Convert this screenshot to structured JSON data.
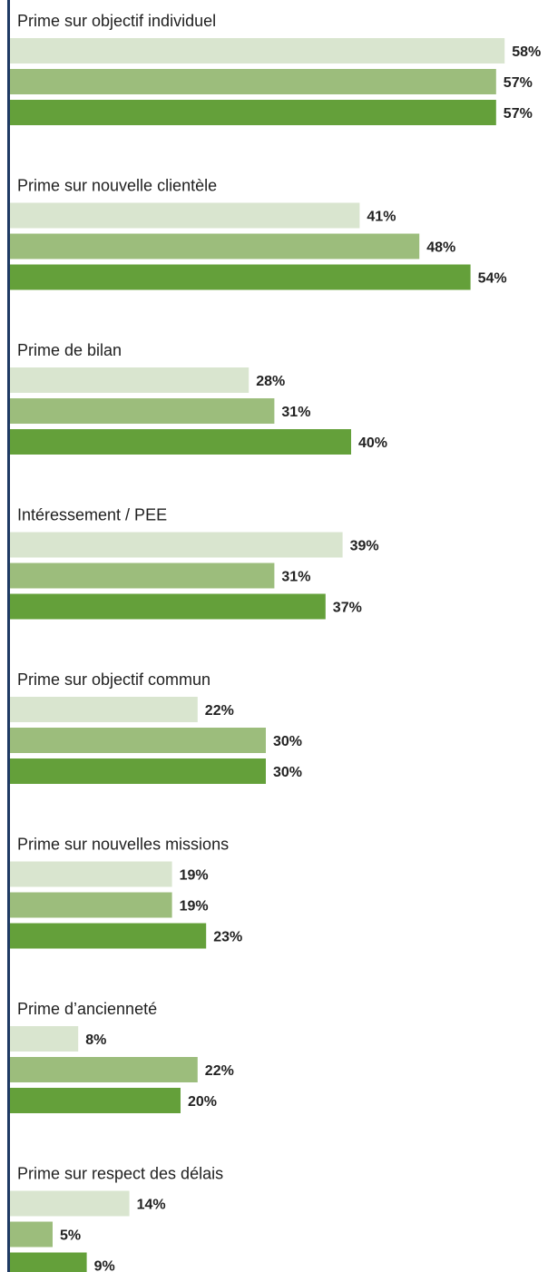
{
  "chart_data": {
    "type": "bar",
    "orientation": "horizontal",
    "categories": [
      "Prime sur objectif individuel",
      "Prime sur nouvelle clientèle",
      "Prime de bilan",
      "Intéressement / PEE",
      "Prime sur objectif commun",
      "Prime sur nouvelles missions",
      "Prime d’ancienneté",
      "Prime sur respect des délais"
    ],
    "series": [
      {
        "values": [
          58,
          41,
          28,
          39,
          22,
          19,
          8,
          14
        ]
      },
      {
        "values": [
          57,
          48,
          31,
          31,
          30,
          19,
          22,
          5
        ]
      },
      {
        "values": [
          57,
          54,
          40,
          37,
          30,
          23,
          20,
          9
        ]
      }
    ],
    "value_suffix": "%",
    "xlim": [
      0,
      60
    ],
    "grid": false,
    "legend": "none",
    "colors": {
      "series": [
        "#d9e5cf",
        "#9cbd7c",
        "#64a03a"
      ],
      "axis": "#1f3a64",
      "label": "#1f1f1f",
      "value_label": "#222222"
    }
  }
}
